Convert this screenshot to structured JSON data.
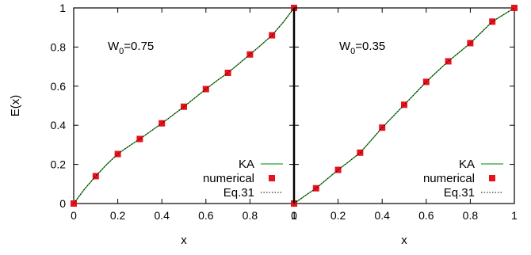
{
  "chart_data": {
    "type": "line",
    "ylabel": "E(x)",
    "panels": [
      {
        "annotation": {
          "prefix": "W",
          "subscript": "0",
          "suffix": "=0.75"
        },
        "xlabel": "x",
        "xlim": [
          0,
          1
        ],
        "ylim": [
          0,
          1
        ],
        "x_ticks": [
          "0",
          "0.2",
          "0.4",
          "0.6",
          "0.8",
          "1"
        ],
        "y_ticks": [
          "0",
          "0.2",
          "0.4",
          "0.6",
          "0.8",
          "1"
        ],
        "legend": [
          "KA",
          "numerical",
          "Eq.31"
        ],
        "series": [
          {
            "name": "KA",
            "style": "line",
            "color": "#2ca02c",
            "x": [
              0,
              0.05,
              0.1,
              0.15,
              0.2,
              0.25,
              0.3,
              0.35,
              0.4,
              0.45,
              0.5,
              0.55,
              0.6,
              0.65,
              0.7,
              0.75,
              0.8,
              0.85,
              0.9,
              0.95,
              1.0
            ],
            "y": [
              0,
              0.075,
              0.14,
              0.2,
              0.253,
              0.293,
              0.33,
              0.37,
              0.41,
              0.452,
              0.495,
              0.54,
              0.585,
              0.628,
              0.668,
              0.715,
              0.762,
              0.81,
              0.86,
              0.925,
              1.0
            ]
          },
          {
            "name": "numerical",
            "style": "marker",
            "color": "#e8121d",
            "x": [
              0,
              0.1,
              0.2,
              0.3,
              0.4,
              0.5,
              0.6,
              0.7,
              0.8,
              0.9,
              1.0
            ],
            "y": [
              0,
              0.14,
              0.253,
              0.33,
              0.41,
              0.495,
              0.585,
              0.668,
              0.762,
              0.86,
              1.0
            ]
          },
          {
            "name": "Eq.31",
            "style": "dotted",
            "color": "#000000",
            "x": [
              0,
              0.05,
              0.1,
              0.15,
              0.2,
              0.25,
              0.3,
              0.35,
              0.4,
              0.45,
              0.5,
              0.55,
              0.6,
              0.65,
              0.7,
              0.75,
              0.8,
              0.85,
              0.9,
              0.95,
              1.0
            ],
            "y": [
              0,
              0.075,
              0.14,
              0.2,
              0.253,
              0.293,
              0.33,
              0.37,
              0.41,
              0.452,
              0.495,
              0.54,
              0.585,
              0.628,
              0.668,
              0.715,
              0.762,
              0.81,
              0.86,
              0.925,
              1.0
            ]
          }
        ]
      },
      {
        "annotation": {
          "prefix": "W",
          "subscript": "0",
          "suffix": "=0.35"
        },
        "xlabel": "x",
        "xlim": [
          0,
          1
        ],
        "ylim": [
          0,
          1
        ],
        "x_ticks": [
          "0",
          "0.2",
          "0.4",
          "0.6",
          "0.8",
          "1"
        ],
        "legend": [
          "KA",
          "numerical",
          "Eq.31"
        ],
        "series": [
          {
            "name": "KA",
            "style": "line",
            "color": "#2ca02c",
            "x": [
              0,
              0.05,
              0.1,
              0.15,
              0.2,
              0.25,
              0.3,
              0.35,
              0.4,
              0.45,
              0.5,
              0.55,
              0.6,
              0.65,
              0.7,
              0.75,
              0.8,
              0.85,
              0.9,
              0.95,
              1.0
            ],
            "y": [
              0,
              0.04,
              0.078,
              0.125,
              0.172,
              0.215,
              0.26,
              0.323,
              0.388,
              0.446,
              0.505,
              0.563,
              0.622,
              0.675,
              0.727,
              0.773,
              0.82,
              0.875,
              0.93,
              0.965,
              1.0
            ]
          },
          {
            "name": "numerical",
            "style": "marker",
            "color": "#e8121d",
            "x": [
              0,
              0.1,
              0.2,
              0.3,
              0.4,
              0.5,
              0.6,
              0.7,
              0.8,
              0.9,
              1.0
            ],
            "y": [
              0,
              0.078,
              0.172,
              0.26,
              0.388,
              0.505,
              0.622,
              0.727,
              0.82,
              0.93,
              1.0
            ]
          },
          {
            "name": "Eq.31",
            "style": "dotted",
            "color": "#000000",
            "x": [
              0,
              0.05,
              0.1,
              0.15,
              0.2,
              0.25,
              0.3,
              0.35,
              0.4,
              0.45,
              0.5,
              0.55,
              0.6,
              0.65,
              0.7,
              0.75,
              0.8,
              0.85,
              0.9,
              0.95,
              1.0
            ],
            "y": [
              0,
              0.04,
              0.078,
              0.125,
              0.172,
              0.215,
              0.26,
              0.323,
              0.388,
              0.446,
              0.505,
              0.563,
              0.622,
              0.675,
              0.727,
              0.773,
              0.82,
              0.875,
              0.93,
              0.965,
              1.0
            ]
          }
        ]
      }
    ]
  }
}
